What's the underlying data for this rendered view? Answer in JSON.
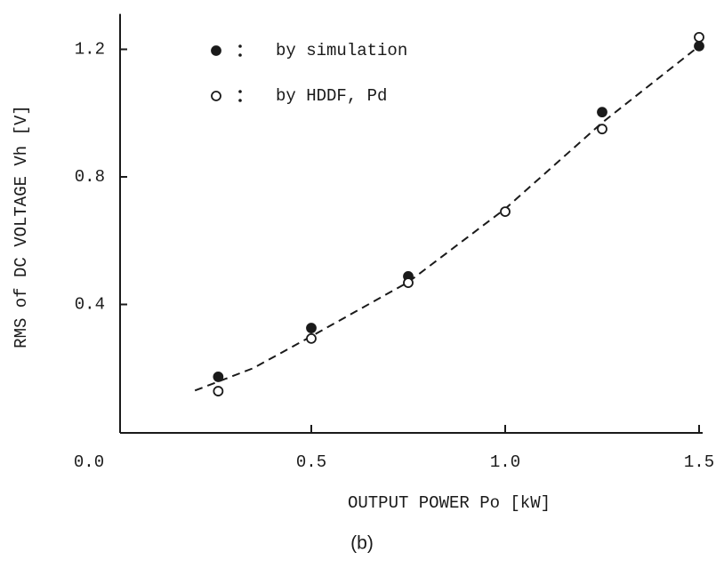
{
  "chart_data": {
    "type": "scatter",
    "caption": "(b)",
    "xlabel": "OUTPUT POWER Po [kW]",
    "ylabel": "RMS of DC VOLTAGE Vh [V]",
    "xlim": [
      0,
      1.5
    ],
    "ylim": [
      0,
      1.3
    ],
    "xticks": [
      {
        "value": 0,
        "label": "0.0"
      },
      0.5,
      {
        "value": 1,
        "label": "1.0"
      },
      1.5
    ],
    "yticks": [
      0.4,
      0.8,
      1.2
    ],
    "series": [
      {
        "name": "by simulation",
        "marker": "filled",
        "color": "#1a1a1a",
        "x": [
          0.26,
          0.5,
          0.75,
          1.25,
          1.5
        ],
        "values": [
          0.173,
          0.326,
          0.488,
          1.003,
          1.21
        ]
      },
      {
        "name": "by HDDF, Pd",
        "marker": "open",
        "color": "#1a1a1a",
        "x": [
          0.26,
          0.5,
          0.75,
          1.0,
          1.25,
          1.5
        ],
        "values": [
          0.128,
          0.293,
          0.468,
          0.691,
          0.95,
          1.238
        ]
      }
    ],
    "fit_line": {
      "style": "dashed",
      "color": "#1a1a1a",
      "x": [
        0.2,
        0.35,
        0.5,
        0.75,
        1.0,
        1.25,
        1.5
      ],
      "values": [
        0.13,
        0.2,
        0.3,
        0.47,
        0.7,
        0.97,
        1.21
      ]
    }
  }
}
